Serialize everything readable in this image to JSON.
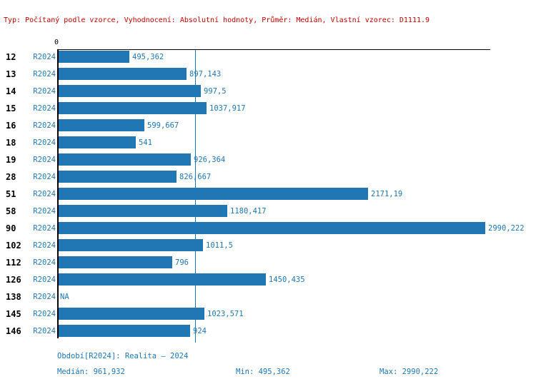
{
  "header": {
    "text": "Typ: Počítaný podle vzorce, Vyhodnocení: Absolutní hodnoty, Průměr: Medián, Vlastní vzorec: D1111.9"
  },
  "colors": {
    "bar_blue": "#2077b4",
    "text_blue": "#2077b4",
    "header_red": "#c00000",
    "axis_black": "#000000"
  },
  "chart_data": {
    "type": "bar",
    "orientation": "horizontal",
    "categories": [
      "12",
      "13",
      "14",
      "15",
      "16",
      "18",
      "19",
      "28",
      "51",
      "58",
      "90",
      "102",
      "112",
      "126",
      "138",
      "145",
      "146"
    ],
    "series_label": "R2024",
    "values": [
      495.362,
      897.143,
      997.5,
      1037.917,
      599.667,
      541,
      926.364,
      826.667,
      2171.19,
      1180.417,
      2990.222,
      1011.5,
      796,
      1450.435,
      null,
      1023.571,
      924
    ],
    "value_labels": [
      "495,362",
      "897,143",
      "997,5",
      "1037,917",
      "599,667",
      "541",
      "926,364",
      "826,667",
      "2171,19",
      "1180,417",
      "2990,222",
      "1011,5",
      "796",
      "1450,435",
      "NA",
      "1023,571",
      "924"
    ],
    "axis": {
      "zero_label": "0",
      "xlim": [
        0,
        3030
      ],
      "median": 961.932
    },
    "legend_position": "none",
    "grid": false
  },
  "footer": {
    "period": "Období[R2024]: Realita – 2024",
    "median": "Medián: 961,932",
    "min": "Min: 495,362",
    "max": "Max: 2990,222"
  }
}
